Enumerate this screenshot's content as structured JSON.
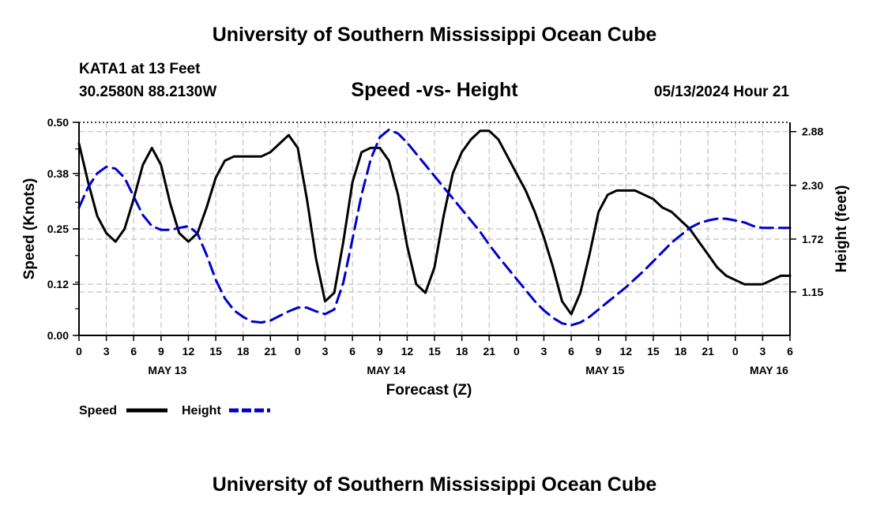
{
  "header": {
    "main_title": "University of Southern Mississippi Ocean Cube",
    "station": "KATA1 at 13 Feet",
    "coords": "30.2580N  88.2130W",
    "chart_title": "Speed -vs- Height",
    "run_time": "05/13/2024 Hour 21",
    "footer_title": "University of Southern Mississippi Ocean Cube"
  },
  "colors": {
    "speed": "#000000",
    "height": "#0000cc",
    "grid": "#c8c8c8"
  },
  "chart_data": {
    "type": "line",
    "title": "Speed -vs- Height",
    "xlabel": "Forecast (Z)",
    "ylabel": "Speed (Knots)",
    "y2label": "Height (feet)",
    "x_range": [
      0,
      78
    ],
    "ylim": [
      0,
      0.5
    ],
    "y2lim": [
      0.68,
      2.98
    ],
    "grid": true,
    "x_ticks": [
      0,
      3,
      6,
      9,
      12,
      15,
      18,
      21,
      24,
      27,
      30,
      33,
      36,
      39,
      42,
      45,
      48,
      51,
      54,
      57,
      60,
      63,
      66,
      69,
      72,
      75,
      78
    ],
    "x_tick_labels": [
      "0",
      "3",
      "6",
      "9",
      "12",
      "15",
      "18",
      "21",
      "0",
      "3",
      "6",
      "9",
      "12",
      "15",
      "18",
      "21",
      "0",
      "3",
      "6",
      "9",
      "12",
      "15",
      "18",
      "21",
      "0",
      "3",
      "6"
    ],
    "date_labels": [
      {
        "x": 9.7,
        "label": "MAY 13"
      },
      {
        "x": 33.7,
        "label": "MAY 14"
      },
      {
        "x": 57.7,
        "label": "MAY 15"
      },
      {
        "x": 75.7,
        "label": "MAY 16"
      }
    ],
    "y_ticks": [
      0,
      0.12,
      0.25,
      0.38,
      0.5
    ],
    "y_tick_labels": [
      "0.00",
      "0.12",
      "0.25",
      "0.38",
      "0.50"
    ],
    "y2_ticks": [
      1.15,
      1.72,
      2.3,
      2.88
    ],
    "y2_tick_labels": [
      "1.15",
      "1.72",
      "2.30",
      "2.88"
    ],
    "series": [
      {
        "name": "Speed",
        "axis": "left",
        "style": "solid",
        "x": [
          0,
          1,
          2,
          3,
          4,
          5,
          6,
          7,
          8,
          9,
          10,
          11,
          12,
          13,
          14,
          15,
          16,
          17,
          18,
          19,
          20,
          21,
          22,
          23,
          24,
          25,
          26,
          27,
          28,
          29,
          30,
          31,
          32,
          33,
          34,
          35,
          36,
          37,
          38,
          39,
          40,
          41,
          42,
          43,
          44,
          45,
          46,
          47,
          48,
          49,
          50,
          51,
          52,
          53,
          54,
          55,
          56,
          57,
          58,
          59,
          60,
          61,
          62,
          63,
          64,
          65,
          66,
          67,
          68,
          69,
          70,
          71,
          72,
          73,
          74,
          75,
          76,
          77,
          78
        ],
        "values": [
          0.45,
          0.36,
          0.28,
          0.24,
          0.22,
          0.25,
          0.32,
          0.4,
          0.44,
          0.4,
          0.31,
          0.24,
          0.22,
          0.24,
          0.3,
          0.37,
          0.41,
          0.42,
          0.42,
          0.42,
          0.42,
          0.43,
          0.45,
          0.47,
          0.44,
          0.32,
          0.18,
          0.08,
          0.1,
          0.22,
          0.36,
          0.43,
          0.44,
          0.44,
          0.41,
          0.33,
          0.21,
          0.12,
          0.1,
          0.16,
          0.28,
          0.38,
          0.43,
          0.46,
          0.48,
          0.48,
          0.46,
          0.42,
          0.38,
          0.34,
          0.29,
          0.23,
          0.16,
          0.08,
          0.05,
          0.1,
          0.19,
          0.29,
          0.33,
          0.34,
          0.34,
          0.34,
          0.33,
          0.32,
          0.3,
          0.29,
          0.27,
          0.25,
          0.22,
          0.19,
          0.16,
          0.14,
          0.13,
          0.12,
          0.12,
          0.12,
          0.13,
          0.14,
          0.14
        ]
      },
      {
        "name": "Height",
        "axis": "right",
        "style": "dashed",
        "x": [
          0,
          1,
          2,
          3,
          4,
          5,
          6,
          7,
          8,
          9,
          10,
          11,
          12,
          13,
          14,
          15,
          16,
          17,
          18,
          19,
          20,
          21,
          22,
          23,
          24,
          25,
          26,
          27,
          28,
          29,
          30,
          31,
          32,
          33,
          34,
          35,
          36,
          37,
          38,
          39,
          40,
          41,
          42,
          43,
          44,
          45,
          46,
          47,
          48,
          49,
          50,
          51,
          52,
          53,
          54,
          55,
          56,
          57,
          58,
          59,
          60,
          61,
          62,
          63,
          64,
          65,
          66,
          67,
          68,
          69,
          70,
          71,
          72,
          73,
          74,
          75,
          76,
          77,
          78
        ],
        "values": [
          2.06,
          2.28,
          2.43,
          2.5,
          2.48,
          2.38,
          2.18,
          1.98,
          1.86,
          1.82,
          1.82,
          1.84,
          1.86,
          1.78,
          1.55,
          1.28,
          1.08,
          0.95,
          0.88,
          0.83,
          0.82,
          0.84,
          0.89,
          0.94,
          0.98,
          0.98,
          0.94,
          0.91,
          0.96,
          1.25,
          1.72,
          2.2,
          2.58,
          2.82,
          2.9,
          2.86,
          2.76,
          2.64,
          2.52,
          2.4,
          2.28,
          2.16,
          2.04,
          1.92,
          1.8,
          1.66,
          1.53,
          1.41,
          1.29,
          1.17,
          1.05,
          0.95,
          0.87,
          0.81,
          0.79,
          0.82,
          0.88,
          0.96,
          1.04,
          1.12,
          1.2,
          1.29,
          1.38,
          1.48,
          1.58,
          1.68,
          1.76,
          1.84,
          1.89,
          1.92,
          1.94,
          1.94,
          1.92,
          1.9,
          1.86,
          1.84,
          1.84,
          1.84,
          1.84
        ]
      }
    ],
    "legend": [
      {
        "label": "Speed",
        "series": "Speed"
      },
      {
        "label": "Height",
        "series": "Height"
      }
    ]
  }
}
